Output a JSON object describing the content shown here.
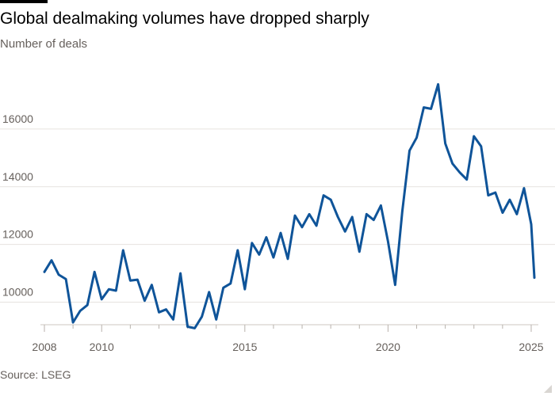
{
  "header": {
    "title": "Global dealmaking volumes have dropped sharply",
    "subtitle": "Number of deals"
  },
  "footer": {
    "source": "Source: LSEG"
  },
  "colors": {
    "line": "#0f5499",
    "grid": "#e6e3df",
    "text": "#66605c"
  },
  "chart_data": {
    "type": "line",
    "title": "Global dealmaking volumes have dropped sharply",
    "ylabel": "Number of deals",
    "xlabel": "",
    "ylim": [
      9000,
      18000
    ],
    "xlim": [
      2008,
      2025.25
    ],
    "yticks": [
      10000,
      12000,
      14000,
      16000
    ],
    "ytick_labels": [
      "10000",
      "12000",
      "14000",
      "16000"
    ],
    "xticks": [
      2008,
      2010,
      2015,
      2020,
      2025
    ],
    "xtick_labels": [
      "2008",
      "2010",
      "2015",
      "2020",
      "2025"
    ],
    "grid": true,
    "series": [
      {
        "name": "Number of deals",
        "x": [
          2008.0,
          2008.25,
          2008.5,
          2008.75,
          2009.0,
          2009.25,
          2009.5,
          2009.75,
          2010.0,
          2010.25,
          2010.5,
          2010.75,
          2011.0,
          2011.25,
          2011.5,
          2011.75,
          2012.0,
          2012.25,
          2012.5,
          2012.75,
          2013.0,
          2013.25,
          2013.5,
          2013.75,
          2014.0,
          2014.25,
          2014.5,
          2014.75,
          2015.0,
          2015.25,
          2015.5,
          2015.75,
          2016.0,
          2016.25,
          2016.5,
          2016.75,
          2017.0,
          2017.25,
          2017.5,
          2017.75,
          2018.0,
          2018.25,
          2018.5,
          2018.75,
          2019.0,
          2019.25,
          2019.5,
          2019.75,
          2020.0,
          2020.25,
          2020.5,
          2020.75,
          2021.0,
          2021.25,
          2021.5,
          2021.75,
          2022.0,
          2022.25,
          2022.5,
          2022.75,
          2023.0,
          2023.25,
          2023.5,
          2023.75,
          2024.0,
          2024.25,
          2024.5,
          2024.75,
          2025.0
        ],
        "values": [
          11050,
          11450,
          10950,
          10800,
          9300,
          9700,
          9900,
          11050,
          10100,
          10450,
          10400,
          11800,
          10750,
          10780,
          10050,
          10600,
          9650,
          9750,
          9400,
          11000,
          9150,
          9100,
          9500,
          10350,
          9400,
          10500,
          10650,
          11800,
          10450,
          12050,
          11650,
          12250,
          11550,
          12400,
          11500,
          13000,
          12600,
          13050,
          12650,
          13700,
          13550,
          12950,
          12450,
          12950,
          11750,
          13050,
          12850,
          13350,
          12100,
          10600,
          13150,
          15250,
          15700,
          16750,
          16700,
          17550,
          15500,
          14800,
          14500,
          14250,
          15750,
          15400,
          13700,
          13800,
          13100,
          13550,
          13050,
          13950,
          12700
        ]
      }
    ],
    "tail": {
      "x": 2025.0,
      "y": 10850
    }
  }
}
